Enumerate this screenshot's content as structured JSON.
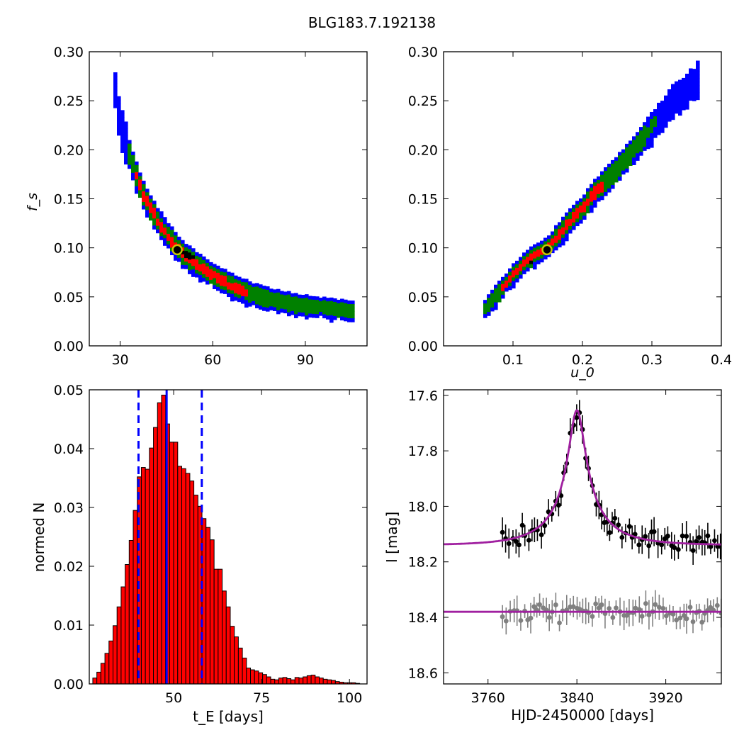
{
  "figure": {
    "title": "BLG183.7.192138"
  },
  "chart_data": [
    {
      "id": "fs-vs-tE",
      "type": "heatmap",
      "xlabel": "",
      "ylabel": "f_s",
      "xlim": [
        20,
        110
      ],
      "ylim": [
        0,
        0.3
      ],
      "xticks": [
        30,
        60,
        90
      ],
      "yticks": [
        0.0,
        0.05,
        0.1,
        0.15,
        0.2,
        0.25,
        0.3
      ],
      "ytick_labels": [
        "0.00",
        "0.05",
        "0.10",
        "0.15",
        "0.20",
        "0.25",
        "0.30"
      ],
      "confidence_levels": [
        {
          "level": "outer",
          "color": "#0000ff"
        },
        {
          "level": "middle",
          "color": "#008000"
        },
        {
          "level": "inner",
          "color": "#ff0000"
        },
        {
          "level": "best",
          "color": "#000000"
        }
      ],
      "best_fit": {
        "x": 48.5,
        "y": 0.098,
        "marker_color": "#c8c800"
      },
      "band": [
        [
          28,
          0.27
        ],
        [
          30,
          0.225
        ],
        [
          32,
          0.205
        ],
        [
          35,
          0.175
        ],
        [
          38,
          0.15
        ],
        [
          42,
          0.128
        ],
        [
          46,
          0.11
        ],
        [
          50,
          0.095
        ],
        [
          55,
          0.082
        ],
        [
          60,
          0.072
        ],
        [
          65,
          0.063
        ],
        [
          70,
          0.056
        ],
        [
          75,
          0.05
        ],
        [
          80,
          0.046
        ],
        [
          85,
          0.043
        ],
        [
          90,
          0.041
        ],
        [
          95,
          0.039
        ],
        [
          100,
          0.037
        ],
        [
          105,
          0.036
        ]
      ]
    },
    {
      "id": "fs-vs-u0",
      "type": "heatmap",
      "xlabel": "u_0",
      "ylabel": "",
      "xlim": [
        0,
        0.4
      ],
      "ylim": [
        0,
        0.3
      ],
      "xticks": [
        0.1,
        0.2,
        0.3,
        0.4
      ],
      "xtick_labels": [
        "0.1",
        "0.2",
        "0.3",
        "0.4"
      ],
      "yticks": [
        0.0,
        0.05,
        0.1,
        0.15,
        0.2,
        0.25,
        0.3
      ],
      "ytick_labels": [
        "0.00",
        "0.05",
        "0.10",
        "0.15",
        "0.20",
        "0.25",
        "0.30"
      ],
      "best_fit": {
        "x": 0.149,
        "y": 0.098
      },
      "band": [
        [
          0.058,
          0.036
        ],
        [
          0.08,
          0.055
        ],
        [
          0.1,
          0.072
        ],
        [
          0.12,
          0.087
        ],
        [
          0.15,
          0.1
        ],
        [
          0.18,
          0.125
        ],
        [
          0.2,
          0.14
        ],
        [
          0.22,
          0.158
        ],
        [
          0.25,
          0.18
        ],
        [
          0.28,
          0.205
        ],
        [
          0.31,
          0.232
        ],
        [
          0.34,
          0.255
        ],
        [
          0.365,
          0.27
        ]
      ]
    },
    {
      "id": "tE-histogram",
      "type": "bar",
      "xlabel": "t_E [days]",
      "ylabel": "normed N",
      "xlim": [
        26,
        105
      ],
      "ylim": [
        0,
        0.05
      ],
      "xticks": [
        50,
        75,
        100
      ],
      "yticks": [
        0.0,
        0.01,
        0.02,
        0.03,
        0.04,
        0.05
      ],
      "ytick_labels": [
        "0.00",
        "0.01",
        "0.02",
        "0.03",
        "0.04",
        "0.05"
      ],
      "bin_start": 27,
      "bin_width": 1.15,
      "values": [
        0.001,
        0.002,
        0.0035,
        0.0052,
        0.0073,
        0.0099,
        0.0131,
        0.0165,
        0.0203,
        0.0244,
        0.0295,
        0.0352,
        0.0368,
        0.0365,
        0.0401,
        0.0436,
        0.0478,
        0.0491,
        0.0442,
        0.0411,
        0.0411,
        0.037,
        0.0366,
        0.0358,
        0.0345,
        0.0321,
        0.0302,
        0.0281,
        0.0266,
        0.0245,
        0.0195,
        0.0195,
        0.0158,
        0.0131,
        0.0098,
        0.008,
        0.0061,
        0.0044,
        0.0027,
        0.0024,
        0.0022,
        0.0019,
        0.0016,
        0.0012,
        0.0008,
        0.0007,
        0.001,
        0.0011,
        0.0009,
        0.0007,
        0.0011,
        0.001,
        0.0012,
        0.0014,
        0.0015,
        0.0012,
        0.001,
        0.0008,
        0.0007,
        0.0006,
        0.0004,
        0.0003,
        0.0002,
        0.0002,
        0.0002,
        0.0001
      ],
      "bar_color": "#ff0000",
      "median": 48,
      "lower": 40,
      "upper": 58
    },
    {
      "id": "light-curve",
      "type": "scatter",
      "xlabel": "HJD-2450000 [days]",
      "ylabel": "I [mag]",
      "xlim": [
        3720,
        3970
      ],
      "ylim": [
        18.64,
        17.58
      ],
      "xticks": [
        3760,
        3840,
        3920
      ],
      "yticks": [
        17.6,
        17.8,
        18.0,
        18.2,
        18.4,
        18.6
      ],
      "ytick_labels": [
        "17.6",
        "17.8",
        "18.0",
        "18.2",
        "18.4",
        "18.6"
      ],
      "model": {
        "t0": 3840,
        "u0": 0.149,
        "tE": 48.5,
        "fs": 0.098,
        "I_base": 18.14,
        "color": "#a020a0"
      },
      "offset_series": {
        "I_base": 18.38,
        "color": "#808080"
      }
    }
  ]
}
